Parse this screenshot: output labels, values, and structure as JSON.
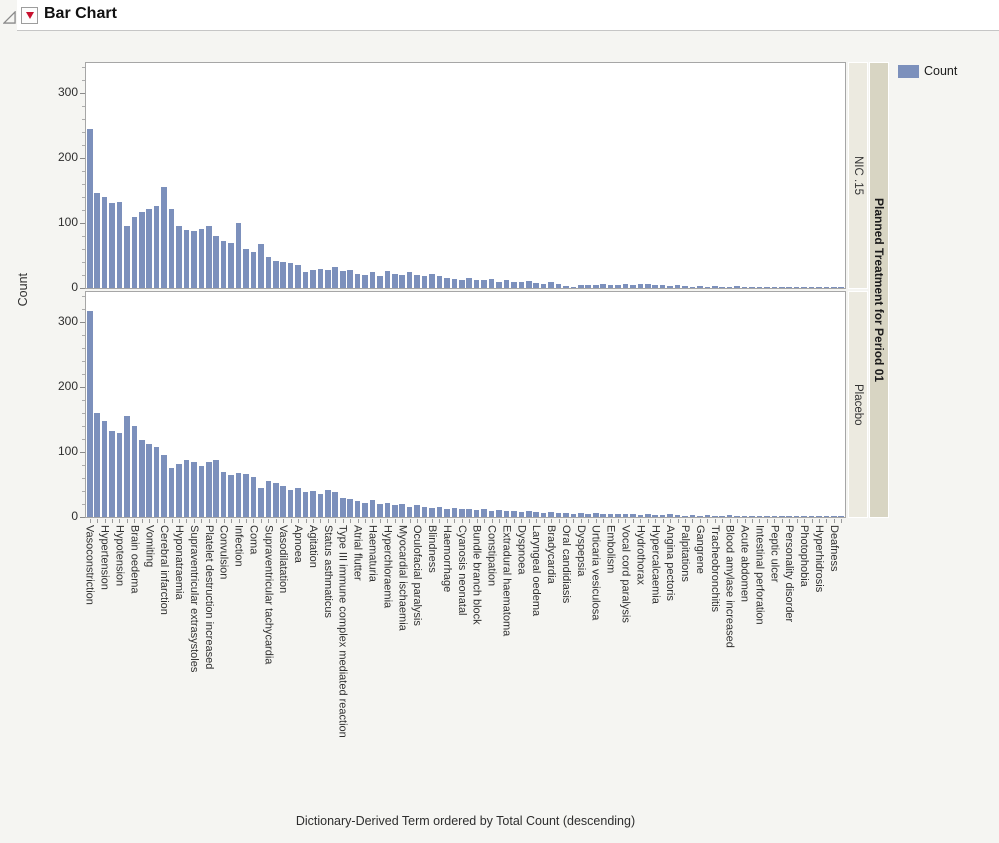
{
  "window": {
    "title": "Bar Chart"
  },
  "header_icons": {
    "disclosure": "open-outline-triangle",
    "menu": "red-dropdown-triangle"
  },
  "legend": {
    "label": "Count",
    "swatch_color": "#7C90BC",
    "position": "top-right"
  },
  "y_axis": {
    "title": "Count",
    "major_ticks": [
      0,
      100,
      200,
      300
    ],
    "minor_tick_step": 20,
    "max_visible": 345
  },
  "x_axis": {
    "title": "Dictionary-Derived Term ordered by Total Count (descending)"
  },
  "group_strip": {
    "title": "Planned Treatment for Period 01",
    "groups": [
      "NIC .15",
      "Placebo"
    ]
  },
  "chart_data": {
    "type": "bar",
    "title": "Bar Chart",
    "ylabel": "Count",
    "xlabel": "Dictionary-Derived Term ordered by Total Count (descending)",
    "ylim": [
      0,
      345
    ],
    "grid": false,
    "legend_position": "top-right",
    "layout_note": "Two vertically stacked panels grouped by Planned Treatment for Period 01; 102 bars per panel sorted descending by total count; category labels shown for every other bar",
    "categories": [
      "Vasoconstriction",
      "Hypertension",
      "Hypotension",
      "Brain oedema",
      "Vomiting",
      "Cerebral infarction",
      "Hyponatraemia",
      "Supraventricular extrasystoles",
      "Platelet destruction increased",
      "Convulsion",
      "Infection",
      "Coma",
      "Supraventricular tachycardia",
      "Vasodilatation",
      "Apnoea",
      "Agitation",
      "Status asthmaticus",
      "Type III immune complex mediated reaction",
      "Atrial flutter",
      "Haematuria",
      "Hyperchloraemia",
      "Myocardial ischaemia",
      "Oculofacial paralysis",
      "Blindness",
      "Haemorrhage",
      "Cyanosis neonatal",
      "Bundle branch block",
      "Constipation",
      "Extradural haematoma",
      "Dyspnoea",
      "Laryngeal oedema",
      "Bradycardia",
      "Oral candidiasis",
      "Dyspepsia",
      "Urticaria vesiculosa",
      "Embolism",
      "Vocal cord paralysis",
      "Hydrothorax",
      "Hypercalcaemia",
      "Angina pectoris",
      "Palpitations",
      "Gangrene",
      "Tracheobronchitis",
      "Blood amylase increased",
      "Acute abdomen",
      "Intestinal perforation",
      "Peptic ulcer",
      "Personality disorder",
      "Photophobia",
      "Hyperhidrosis",
      "Deafness"
    ],
    "panels": [
      {
        "name": "NIC .15",
        "values": [
          245,
          146,
          140,
          131,
          133,
          96,
          110,
          117,
          122,
          127,
          155,
          121,
          96,
          90,
          87,
          91,
          95,
          80,
          73,
          70,
          100,
          60,
          55,
          68,
          48,
          42,
          40,
          38,
          35,
          25,
          28,
          30,
          28,
          32,
          26,
          28,
          22,
          20,
          24,
          18,
          26,
          22,
          20,
          24,
          20,
          18,
          22,
          18,
          16,
          14,
          12,
          15,
          13,
          12,
          14,
          10,
          12,
          10,
          9,
          11,
          8,
          7,
          9,
          6,
          3,
          2,
          4,
          5,
          4,
          6,
          5,
          4,
          6,
          5,
          7,
          6,
          5,
          4,
          3,
          4,
          3,
          2,
          3,
          2,
          3,
          2,
          2,
          3,
          2,
          2,
          1,
          2,
          1,
          2,
          1,
          1,
          2,
          1,
          1,
          1,
          1,
          1
        ]
      },
      {
        "name": "Placebo",
        "values": [
          317,
          160,
          148,
          132,
          130,
          155,
          140,
          118,
          112,
          108,
          95,
          75,
          82,
          88,
          85,
          78,
          85,
          88,
          70,
          65,
          68,
          66,
          62,
          45,
          55,
          52,
          48,
          42,
          45,
          38,
          40,
          35,
          42,
          38,
          30,
          28,
          25,
          22,
          26,
          20,
          22,
          18,
          20,
          16,
          18,
          15,
          14,
          16,
          12,
          14,
          12,
          13,
          11,
          12,
          10,
          11,
          9,
          10,
          8,
          9,
          8,
          7,
          8,
          6,
          7,
          5,
          6,
          5,
          6,
          4,
          5,
          4,
          5,
          4,
          3,
          4,
          3,
          3,
          4,
          3,
          2,
          3,
          2,
          3,
          2,
          2,
          3,
          2,
          2,
          1,
          2,
          1,
          1,
          2,
          1,
          1,
          1,
          1,
          1,
          1,
          1,
          1
        ]
      }
    ]
  },
  "colors": {
    "bar": "#7C90BC",
    "panel_border": "#A6A6A6",
    "strip_inner_bg": "#ECEAE0",
    "strip_outer_bg": "#D8D5C3",
    "page_bg": "#F5F5F2",
    "menu_red": "#C8102E",
    "tick": "#8A8A8A",
    "text": "#2e2e2e"
  }
}
